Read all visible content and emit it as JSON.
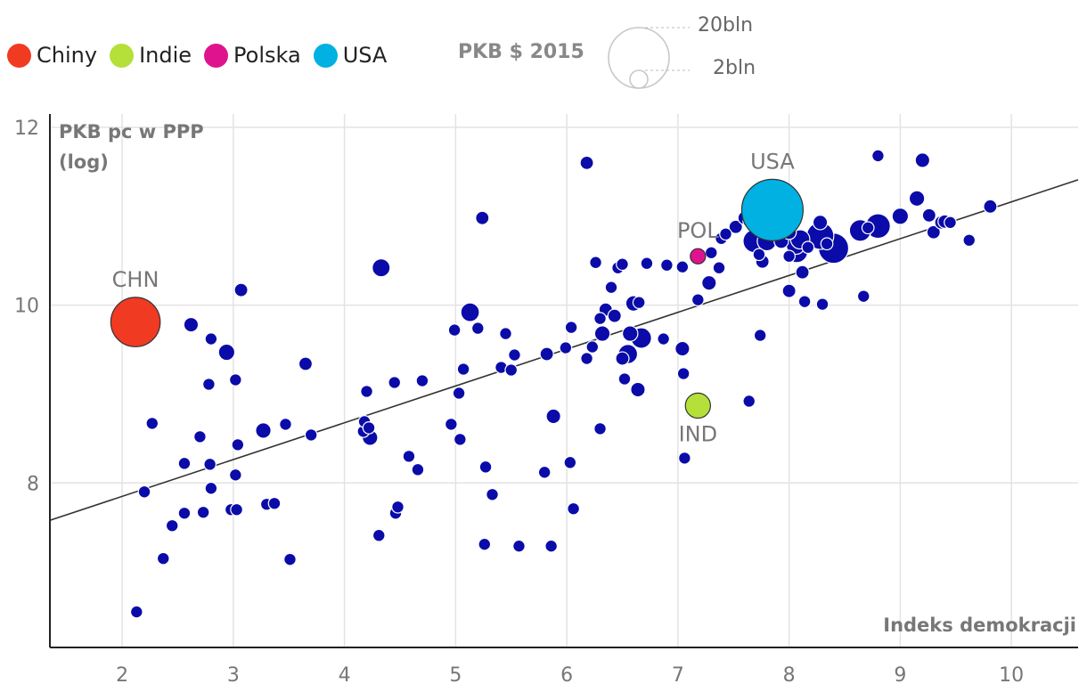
{
  "legend": {
    "items": [
      {
        "label": "Chiny",
        "color": "#f13a22"
      },
      {
        "label": "Indie",
        "color": "#b5e03a"
      },
      {
        "label": "Polska",
        "color": "#e0138f"
      },
      {
        "label": "USA",
        "color": "#00b1e1"
      }
    ],
    "size_title": "PKB $ 2015",
    "size_large": "20bln",
    "size_small": "2bln"
  },
  "chart_data": {
    "type": "scatter",
    "title": "",
    "xlabel": "Indeks demokracji",
    "ylabel": "PKB pc w PPP",
    "ylabel_sub": "(log)",
    "xlim": [
      1.35,
      10.6
    ],
    "ylim": [
      6.15,
      12.15
    ],
    "xticks": [
      2,
      3,
      4,
      5,
      6,
      7,
      8,
      9,
      10
    ],
    "yticks": [
      8,
      10,
      12
    ],
    "trendline": {
      "x": [
        1.35,
        10.6
      ],
      "y": [
        7.58,
        11.41
      ]
    },
    "highlighted": [
      {
        "label": "CHN",
        "name": "Chiny",
        "x": 2.12,
        "y": 9.81,
        "gdp": 11.0,
        "color": "#f13a22"
      },
      {
        "label": "IND",
        "name": "Indie",
        "x": 7.18,
        "y": 8.87,
        "gdp": 2.1,
        "color": "#b5e03a"
      },
      {
        "label": "POL",
        "name": "Polska",
        "x": 7.18,
        "y": 10.55,
        "gdp": 0.48,
        "color": "#e0138f"
      },
      {
        "label": "USA",
        "name": "USA",
        "x": 7.85,
        "y": 11.07,
        "gdp": 18.0,
        "color": "#00b1e1"
      }
    ],
    "points": [
      [
        2.13,
        6.55,
        0.2
      ],
      [
        2.37,
        7.15,
        0.2
      ],
      [
        2.2,
        7.9,
        0.2
      ],
      [
        2.27,
        8.67,
        0.2
      ],
      [
        2.45,
        7.52,
        0.2
      ],
      [
        2.56,
        7.66,
        0.2
      ],
      [
        2.73,
        7.67,
        0.2
      ],
      [
        2.56,
        8.22,
        0.2
      ],
      [
        2.7,
        8.52,
        0.2
      ],
      [
        2.79,
        8.21,
        0.2
      ],
      [
        2.8,
        7.94,
        0.2
      ],
      [
        2.78,
        9.11,
        0.2
      ],
      [
        2.8,
        9.62,
        0.2
      ],
      [
        2.62,
        9.78,
        0.4
      ],
      [
        2.94,
        9.47,
        0.6
      ],
      [
        3.04,
        8.43,
        0.2
      ],
      [
        3.02,
        8.09,
        0.2
      ],
      [
        2.98,
        7.7,
        0.2
      ],
      [
        3.03,
        7.7,
        0.2
      ],
      [
        3.02,
        9.16,
        0.2
      ],
      [
        3.07,
        10.17,
        0.3
      ],
      [
        3.27,
        8.59,
        0.5
      ],
      [
        3.3,
        7.76,
        0.2
      ],
      [
        3.37,
        7.77,
        0.2
      ],
      [
        3.47,
        8.66,
        0.2
      ],
      [
        3.51,
        7.14,
        0.2
      ],
      [
        3.65,
        9.34,
        0.3
      ],
      [
        3.7,
        8.54,
        0.2
      ],
      [
        4.17,
        8.58,
        0.2
      ],
      [
        4.18,
        8.69,
        0.2
      ],
      [
        4.22,
        8.62,
        0.2
      ],
      [
        4.23,
        8.51,
        0.5
      ],
      [
        4.2,
        9.03,
        0.2
      ],
      [
        4.31,
        7.41,
        0.2
      ],
      [
        4.33,
        10.42,
        0.8
      ],
      [
        4.45,
        9.13,
        0.2
      ],
      [
        4.46,
        7.66,
        0.2
      ],
      [
        4.48,
        7.73,
        0.2
      ],
      [
        4.58,
        8.3,
        0.2
      ],
      [
        4.66,
        8.15,
        0.2
      ],
      [
        4.7,
        9.15,
        0.2
      ],
      [
        4.96,
        8.66,
        0.2
      ],
      [
        4.99,
        9.72,
        0.2
      ],
      [
        5.03,
        9.01,
        0.2
      ],
      [
        5.04,
        8.49,
        0.2
      ],
      [
        5.07,
        9.28,
        0.2
      ],
      [
        5.13,
        9.92,
        0.9
      ],
      [
        5.24,
        10.98,
        0.3
      ],
      [
        5.2,
        9.74,
        0.2
      ],
      [
        5.26,
        7.31,
        0.2
      ],
      [
        5.27,
        8.18,
        0.2
      ],
      [
        5.33,
        7.87,
        0.2
      ],
      [
        5.41,
        9.3,
        0.2
      ],
      [
        5.45,
        9.68,
        0.2
      ],
      [
        5.5,
        9.27,
        0.2
      ],
      [
        5.53,
        9.44,
        0.2
      ],
      [
        5.57,
        7.29,
        0.2
      ],
      [
        5.8,
        8.12,
        0.2
      ],
      [
        5.82,
        9.45,
        0.3
      ],
      [
        5.86,
        7.29,
        0.2
      ],
      [
        5.88,
        8.75,
        0.4
      ],
      [
        5.99,
        9.52,
        0.2
      ],
      [
        6.03,
        8.23,
        0.2
      ],
      [
        6.04,
        9.75,
        0.2
      ],
      [
        6.06,
        7.71,
        0.2
      ],
      [
        6.18,
        9.4,
        0.2
      ],
      [
        6.18,
        11.6,
        0.3
      ],
      [
        6.23,
        9.53,
        0.2
      ],
      [
        6.26,
        10.48,
        0.2
      ],
      [
        6.3,
        8.61,
        0.2
      ],
      [
        6.3,
        9.85,
        0.2
      ],
      [
        6.32,
        9.68,
        0.5
      ],
      [
        6.35,
        9.95,
        0.3
      ],
      [
        6.4,
        10.2,
        0.2
      ],
      [
        6.43,
        9.88,
        0.3
      ],
      [
        6.46,
        10.42,
        0.2
      ],
      [
        6.5,
        9.4,
        0.3
      ],
      [
        6.5,
        10.46,
        0.2
      ],
      [
        6.52,
        9.17,
        0.2
      ],
      [
        6.55,
        9.45,
        1.0
      ],
      [
        6.57,
        9.68,
        0.5
      ],
      [
        6.6,
        10.02,
        0.5
      ],
      [
        6.65,
        10.03,
        0.2
      ],
      [
        6.64,
        9.05,
        0.4
      ],
      [
        6.67,
        9.63,
        1.2
      ],
      [
        6.72,
        10.47,
        0.2
      ],
      [
        6.87,
        9.62,
        0.2
      ],
      [
        6.9,
        10.45,
        0.2
      ],
      [
        7.04,
        10.43,
        0.2
      ],
      [
        7.04,
        9.51,
        0.4
      ],
      [
        7.05,
        9.23,
        0.2
      ],
      [
        7.06,
        8.28,
        0.2
      ],
      [
        7.18,
        10.06,
        0.2
      ],
      [
        7.28,
        10.25,
        0.4
      ],
      [
        7.3,
        10.59,
        0.2
      ],
      [
        7.37,
        10.42,
        0.2
      ],
      [
        7.39,
        10.75,
        0.2
      ],
      [
        7.43,
        10.8,
        0.2
      ],
      [
        7.52,
        10.88,
        0.3
      ],
      [
        7.6,
        10.98,
        0.3
      ],
      [
        7.64,
        10.94,
        0.2
      ],
      [
        7.64,
        8.92,
        0.2
      ],
      [
        7.69,
        10.72,
        1.7
      ],
      [
        7.73,
        10.57,
        0.2
      ],
      [
        7.74,
        9.66,
        0.2
      ],
      [
        7.76,
        10.49,
        0.3
      ],
      [
        7.78,
        10.9,
        0.3
      ],
      [
        7.8,
        10.72,
        1.0
      ],
      [
        7.93,
        10.72,
        0.4
      ],
      [
        8.0,
        10.82,
        0.4
      ],
      [
        8.0,
        10.16,
        0.3
      ],
      [
        8.0,
        10.55,
        0.2
      ],
      [
        8.06,
        10.68,
        1.0
      ],
      [
        8.07,
        10.6,
        1.4
      ],
      [
        8.1,
        10.74,
        1.0
      ],
      [
        8.12,
        10.37,
        0.3
      ],
      [
        8.14,
        10.04,
        0.2
      ],
      [
        8.17,
        10.65,
        0.2
      ],
      [
        8.28,
        10.78,
        2.6
      ],
      [
        8.28,
        10.93,
        0.4
      ],
      [
        8.3,
        10.01,
        0.2
      ],
      [
        8.34,
        10.69,
        0.2
      ],
      [
        8.4,
        10.64,
        3.4
      ],
      [
        8.64,
        10.84,
        1.4
      ],
      [
        8.67,
        10.1,
        0.2
      ],
      [
        8.71,
        10.87,
        0.2
      ],
      [
        8.8,
        10.89,
        2.0
      ],
      [
        8.8,
        11.68,
        0.2
      ],
      [
        9.0,
        11.0,
        0.6
      ],
      [
        9.15,
        11.2,
        0.5
      ],
      [
        9.2,
        11.63,
        0.4
      ],
      [
        9.26,
        11.01,
        0.3
      ],
      [
        9.3,
        10.82,
        0.3
      ],
      [
        9.37,
        10.93,
        0.3
      ],
      [
        9.4,
        10.94,
        0.3
      ],
      [
        9.45,
        10.93,
        0.2
      ],
      [
        9.62,
        10.73,
        0.2
      ],
      [
        9.81,
        11.11,
        0.3
      ]
    ]
  }
}
